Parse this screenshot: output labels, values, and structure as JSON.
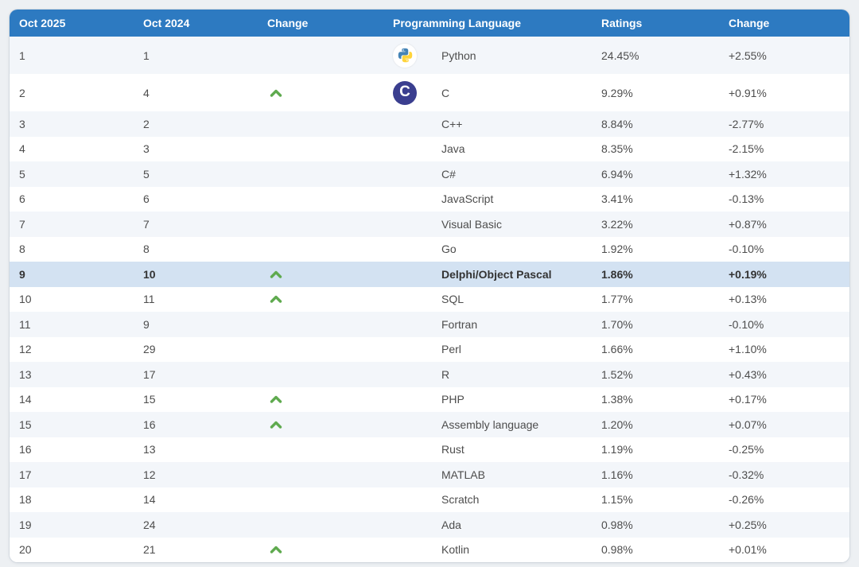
{
  "table": {
    "headers": [
      "Oct 2025",
      "Oct 2024",
      "Change",
      "Programming Language",
      "Ratings",
      "Change"
    ],
    "rows": [
      {
        "rank_2025": "1",
        "rank_2024": "1",
        "moved_up": false,
        "icon": "python",
        "language": "Python",
        "ratings": "24.45%",
        "change": "+2.55%",
        "highlighted": false
      },
      {
        "rank_2025": "2",
        "rank_2024": "4",
        "moved_up": true,
        "icon": "c",
        "language": "C",
        "ratings": "9.29%",
        "change": "+0.91%",
        "highlighted": false
      },
      {
        "rank_2025": "3",
        "rank_2024": "2",
        "moved_up": false,
        "icon": null,
        "language": "C++",
        "ratings": "8.84%",
        "change": "-2.77%",
        "highlighted": false
      },
      {
        "rank_2025": "4",
        "rank_2024": "3",
        "moved_up": false,
        "icon": null,
        "language": "Java",
        "ratings": "8.35%",
        "change": "-2.15%",
        "highlighted": false
      },
      {
        "rank_2025": "5",
        "rank_2024": "5",
        "moved_up": false,
        "icon": null,
        "language": "C#",
        "ratings": "6.94%",
        "change": "+1.32%",
        "highlighted": false
      },
      {
        "rank_2025": "6",
        "rank_2024": "6",
        "moved_up": false,
        "icon": null,
        "language": "JavaScript",
        "ratings": "3.41%",
        "change": "-0.13%",
        "highlighted": false
      },
      {
        "rank_2025": "7",
        "rank_2024": "7",
        "moved_up": false,
        "icon": null,
        "language": "Visual Basic",
        "ratings": "3.22%",
        "change": "+0.87%",
        "highlighted": false
      },
      {
        "rank_2025": "8",
        "rank_2024": "8",
        "moved_up": false,
        "icon": null,
        "language": "Go",
        "ratings": "1.92%",
        "change": "-0.10%",
        "highlighted": false
      },
      {
        "rank_2025": "9",
        "rank_2024": "10",
        "moved_up": true,
        "icon": null,
        "language": "Delphi/Object Pascal",
        "ratings": "1.86%",
        "change": "+0.19%",
        "highlighted": true
      },
      {
        "rank_2025": "10",
        "rank_2024": "11",
        "moved_up": true,
        "icon": null,
        "language": "SQL",
        "ratings": "1.77%",
        "change": "+0.13%",
        "highlighted": false
      },
      {
        "rank_2025": "11",
        "rank_2024": "9",
        "moved_up": false,
        "icon": null,
        "language": "Fortran",
        "ratings": "1.70%",
        "change": "-0.10%",
        "highlighted": false
      },
      {
        "rank_2025": "12",
        "rank_2024": "29",
        "moved_up": false,
        "icon": null,
        "language": "Perl",
        "ratings": "1.66%",
        "change": "+1.10%",
        "highlighted": false
      },
      {
        "rank_2025": "13",
        "rank_2024": "17",
        "moved_up": false,
        "icon": null,
        "language": "R",
        "ratings": "1.52%",
        "change": "+0.43%",
        "highlighted": false
      },
      {
        "rank_2025": "14",
        "rank_2024": "15",
        "moved_up": true,
        "icon": null,
        "language": "PHP",
        "ratings": "1.38%",
        "change": "+0.17%",
        "highlighted": false
      },
      {
        "rank_2025": "15",
        "rank_2024": "16",
        "moved_up": true,
        "icon": null,
        "language": "Assembly language",
        "ratings": "1.20%",
        "change": "+0.07%",
        "highlighted": false
      },
      {
        "rank_2025": "16",
        "rank_2024": "13",
        "moved_up": false,
        "icon": null,
        "language": "Rust",
        "ratings": "1.19%",
        "change": "-0.25%",
        "highlighted": false
      },
      {
        "rank_2025": "17",
        "rank_2024": "12",
        "moved_up": false,
        "icon": null,
        "language": "MATLAB",
        "ratings": "1.16%",
        "change": "-0.32%",
        "highlighted": false
      },
      {
        "rank_2025": "18",
        "rank_2024": "14",
        "moved_up": false,
        "icon": null,
        "language": "Scratch",
        "ratings": "1.15%",
        "change": "-0.26%",
        "highlighted": false
      },
      {
        "rank_2025": "19",
        "rank_2024": "24",
        "moved_up": false,
        "icon": null,
        "language": "Ada",
        "ratings": "0.98%",
        "change": "+0.25%",
        "highlighted": false
      },
      {
        "rank_2025": "20",
        "rank_2024": "21",
        "moved_up": true,
        "icon": null,
        "language": "Kotlin",
        "ratings": "0.98%",
        "change": "+0.01%",
        "highlighted": false
      }
    ]
  },
  "icons": {
    "up_arrow": "chevron-up",
    "python": "python-logo",
    "c": "c-logo",
    "c_letter": "C"
  },
  "colors": {
    "header_bg": "#2d7ac1",
    "header_text": "#ffffff",
    "stripe_row_bg": "#f3f6fa",
    "white_row_bg": "#ffffff",
    "highlight_row_bg": "#d3e2f2",
    "body_text": "#4d4d4d",
    "up_arrow_green": "#5faa4f",
    "c_icon_bg": "#3a3e8f",
    "python_blue": "#4584b6",
    "python_yellow": "#ffd43b",
    "page_bg": "#edf0f3"
  }
}
